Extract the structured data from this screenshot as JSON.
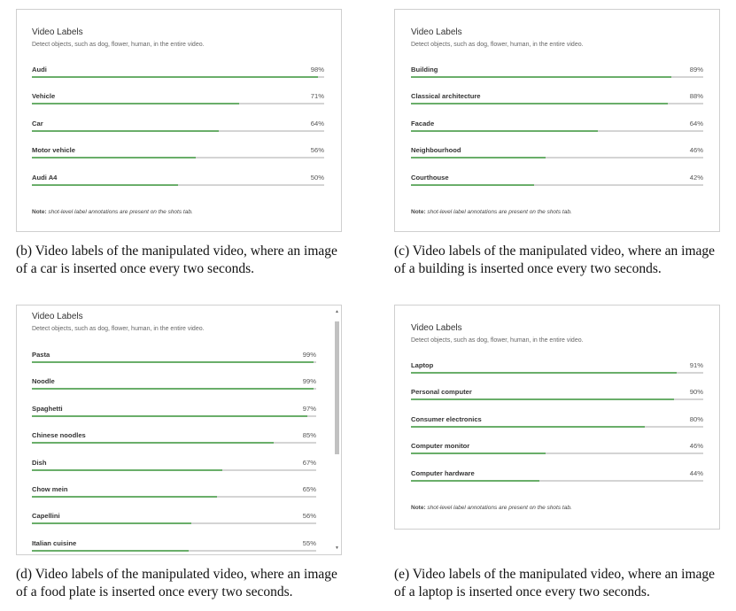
{
  "header_text": "Video Labels",
  "subheader_text": "Detect objects, such as dog, flower, human, in the entire video.",
  "note_prefix": "Note:",
  "note_text": "shot-level label annotations are present on the shots tab.",
  "panels": {
    "b": {
      "labels": [
        {
          "name": "Audi",
          "value": "98%",
          "fraction": 0.98
        },
        {
          "name": "Vehicle",
          "value": "71%",
          "fraction": 0.71
        },
        {
          "name": "Car",
          "value": "64%",
          "fraction": 0.64
        },
        {
          "name": "Motor vehicle",
          "value": "56%",
          "fraction": 0.56
        },
        {
          "name": "Audi A4",
          "value": "50%",
          "fraction": 0.5
        }
      ],
      "caption": "(b) Video labels of the manipulated video, where an image of a car is inserted once every two seconds."
    },
    "c": {
      "labels": [
        {
          "name": "Building",
          "value": "89%",
          "fraction": 0.89
        },
        {
          "name": "Classical architecture",
          "value": "88%",
          "fraction": 0.88
        },
        {
          "name": "Facade",
          "value": "64%",
          "fraction": 0.64
        },
        {
          "name": "Neighbourhood",
          "value": "46%",
          "fraction": 0.46
        },
        {
          "name": "Courthouse",
          "value": "42%",
          "fraction": 0.42
        }
      ],
      "caption": "(c) Video labels of the manipulated video, where an image of a building is inserted once every two seconds."
    },
    "d": {
      "labels": [
        {
          "name": "Pasta",
          "value": "99%",
          "fraction": 0.99
        },
        {
          "name": "Noodle",
          "value": "99%",
          "fraction": 0.99
        },
        {
          "name": "Spaghetti",
          "value": "97%",
          "fraction": 0.97
        },
        {
          "name": "Chinese noodles",
          "value": "85%",
          "fraction": 0.85
        },
        {
          "name": "Dish",
          "value": "67%",
          "fraction": 0.67
        },
        {
          "name": "Chow mein",
          "value": "65%",
          "fraction": 0.65
        },
        {
          "name": "Capellini",
          "value": "56%",
          "fraction": 0.56
        },
        {
          "name": "Italian cuisine",
          "value": "55%",
          "fraction": 0.55
        }
      ],
      "caption": "(d) Video labels of the manipulated video, where an image of a food plate is inserted once every two seconds."
    },
    "e": {
      "labels": [
        {
          "name": "Laptop",
          "value": "91%",
          "fraction": 0.91
        },
        {
          "name": "Personal computer",
          "value": "90%",
          "fraction": 0.9
        },
        {
          "name": "Consumer electronics",
          "value": "80%",
          "fraction": 0.8
        },
        {
          "name": "Computer monitor",
          "value": "46%",
          "fraction": 0.46
        },
        {
          "name": "Computer hardware",
          "value": "44%",
          "fraction": 0.44
        }
      ],
      "caption": "(e) Video labels of the manipulated video, where an image of a laptop is inserted once every two seconds."
    }
  },
  "colors": {
    "bar_fill": "#6aae6a",
    "bar_track": "#d4d4d4"
  }
}
